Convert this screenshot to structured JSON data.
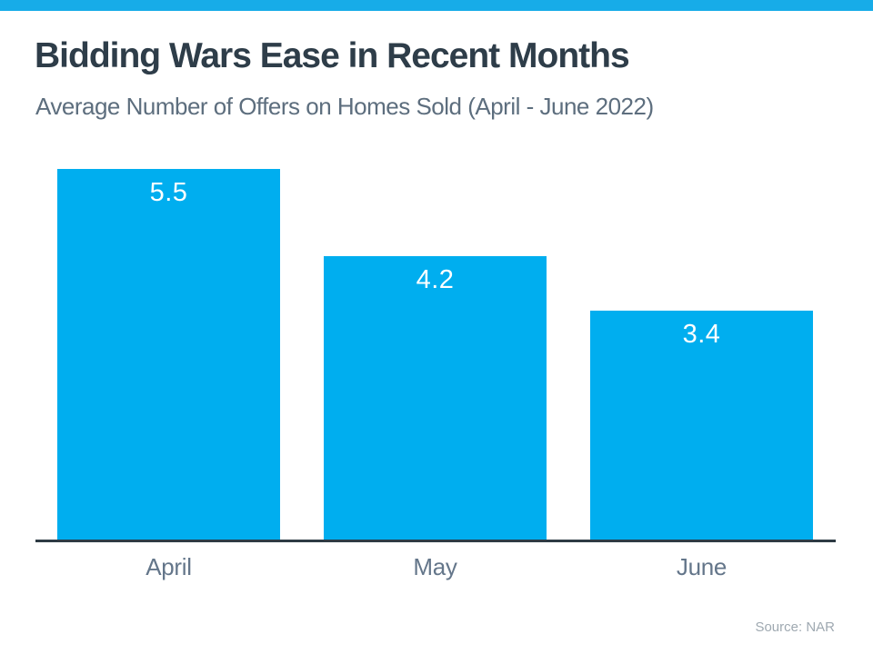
{
  "header": {
    "title": "Bidding Wars Ease in Recent Months",
    "subtitle": "Average Number of Offers on Homes Sold (April - June 2022)"
  },
  "chart_data": {
    "type": "bar",
    "categories": [
      "April",
      "May",
      "June"
    ],
    "values": [
      5.5,
      4.2,
      3.4
    ],
    "value_labels": [
      "5.5",
      "4.2",
      "3.4"
    ],
    "title": "Bidding Wars Ease in Recent Months",
    "subtitle": "Average Number of Offers on Homes Sold (April - June 2022)",
    "xlabel": "",
    "ylabel": "",
    "ylim": [
      0,
      5.5
    ],
    "grid": false,
    "legend": false,
    "bar_color": "#00AEEF",
    "value_label_color": "#FFFFFF",
    "axis_line_color": "#2E3B44",
    "accent_stripe_color": "#17ACE8",
    "source": "Source: NAR"
  },
  "footer": {
    "source_note": "Source: NAR"
  }
}
